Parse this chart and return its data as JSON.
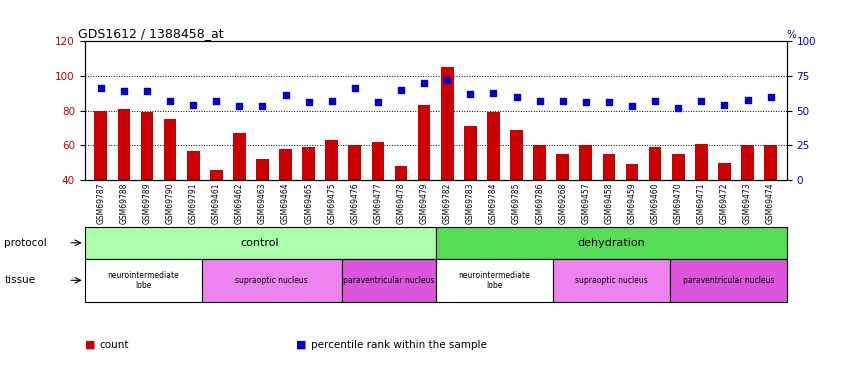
{
  "title": "GDS1612 / 1388458_at",
  "samples": [
    "GSM69787",
    "GSM69788",
    "GSM69789",
    "GSM69790",
    "GSM69791",
    "GSM69461",
    "GSM69462",
    "GSM69463",
    "GSM69464",
    "GSM69465",
    "GSM69475",
    "GSM69476",
    "GSM69477",
    "GSM69478",
    "GSM69479",
    "GSM69782",
    "GSM69783",
    "GSM69784",
    "GSM69785",
    "GSM69786",
    "GSM69268",
    "GSM69457",
    "GSM69458",
    "GSM69459",
    "GSM69460",
    "GSM69470",
    "GSM69471",
    "GSM69472",
    "GSM69473",
    "GSM69474"
  ],
  "bar_values": [
    80,
    81,
    79,
    75,
    57,
    46,
    67,
    52,
    58,
    59,
    63,
    60,
    62,
    48,
    83,
    105,
    71,
    79,
    69,
    60,
    55,
    60,
    55,
    49,
    59,
    55,
    61,
    50,
    60,
    60
  ],
  "dot_values": [
    66,
    64,
    64,
    57,
    54,
    57,
    53,
    53,
    61,
    56,
    57,
    66,
    56,
    65,
    70,
    72,
    62,
    63,
    60,
    57,
    57,
    56,
    56,
    53,
    57,
    52,
    57,
    54,
    58,
    60
  ],
  "ylim_left": [
    40,
    120
  ],
  "ylim_right": [
    0,
    100
  ],
  "yticks_left": [
    40,
    60,
    80,
    100,
    120
  ],
  "yticks_right": [
    0,
    25,
    50,
    75,
    100
  ],
  "bar_color": "#cc0000",
  "dot_color": "#0000cc",
  "grid_color": "#000000",
  "protocol_row": {
    "control_count": 15,
    "dehydration_count": 15,
    "control_color": "#aaffaa",
    "dehydration_color": "#55dd55",
    "control_label": "control",
    "dehydration_label": "dehydration"
  },
  "tissue_row": {
    "segments": [
      {
        "label": "neurointermediate\nlobe",
        "count": 5,
        "color": "#ffffff"
      },
      {
        "label": "supraoptic nucleus",
        "count": 6,
        "color": "#ee82ee"
      },
      {
        "label": "paraventricular nucleus",
        "count": 4,
        "color": "#dd55dd"
      },
      {
        "label": "neurointermediate\nlobe",
        "count": 5,
        "color": "#ffffff"
      },
      {
        "label": "supraoptic nucleus",
        "count": 5,
        "color": "#ee82ee"
      },
      {
        "label": "paraventricular nucleus",
        "count": 5,
        "color": "#dd55dd"
      }
    ]
  },
  "legend_items": [
    {
      "label": "count",
      "color": "#cc0000"
    },
    {
      "label": "percentile rank within the sample",
      "color": "#0000cc"
    }
  ],
  "tick_label_color": "#cc0000",
  "right_tick_label_color": "#0000cc",
  "background_color": "#ffffff"
}
